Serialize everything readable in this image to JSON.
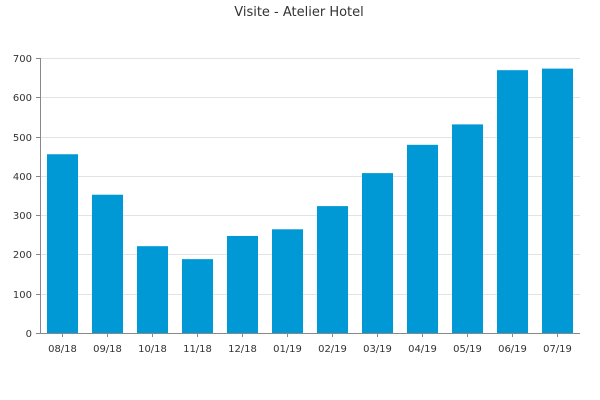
{
  "chart_data": {
    "type": "bar",
    "title": "Visite - Atelier Hotel",
    "xlabel": "",
    "ylabel": "",
    "categories": [
      "08/18",
      "09/18",
      "10/18",
      "11/18",
      "12/18",
      "01/19",
      "02/19",
      "03/19",
      "04/19",
      "05/19",
      "06/19",
      "07/19"
    ],
    "values": [
      455,
      352,
      221,
      188,
      247,
      264,
      323,
      407,
      479,
      531,
      669,
      673
    ],
    "ylim": [
      0,
      700
    ],
    "yticks": [
      0,
      100,
      200,
      300,
      400,
      500,
      600,
      700
    ],
    "grid": true,
    "legend": "none",
    "bar_color": "#0099d6"
  }
}
